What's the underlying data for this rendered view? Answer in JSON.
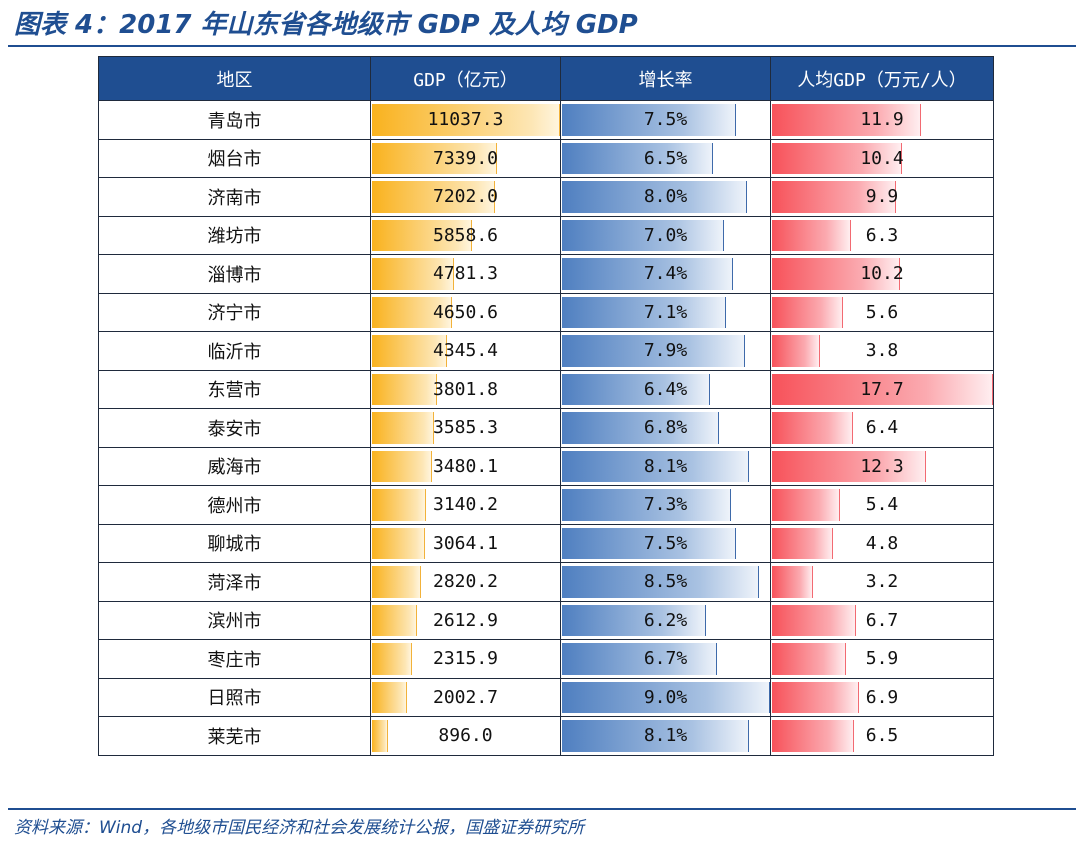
{
  "title": "图表 4：2017 年山东省各地级市 GDP 及人均 GDP",
  "source": "资料来源：Wind，各地级市国民经济和社会发展统计公报，国盛证券研究所",
  "colors": {
    "gdp_bar": "#f9b21e",
    "growth_bar": "#4f7fc0",
    "per_capita_bar": "#f7525a",
    "header_bg": "#1f4e91"
  },
  "chart_data": {
    "type": "table",
    "columns": [
      "地区",
      "GDP（亿元）",
      "增长率",
      "人均GDP（万元/人）"
    ],
    "rows": [
      {
        "city": "青岛市",
        "gdp": "11037.3",
        "growth": "7.5%",
        "per_capita": "11.9"
      },
      {
        "city": "烟台市",
        "gdp": "7339.0",
        "growth": "6.5%",
        "per_capita": "10.4"
      },
      {
        "city": "济南市",
        "gdp": "7202.0",
        "growth": "8.0%",
        "per_capita": "9.9"
      },
      {
        "city": "潍坊市",
        "gdp": "5858.6",
        "growth": "7.0%",
        "per_capita": "6.3"
      },
      {
        "city": "淄博市",
        "gdp": "4781.3",
        "growth": "7.4%",
        "per_capita": "10.2"
      },
      {
        "city": "济宁市",
        "gdp": "4650.6",
        "growth": "7.1%",
        "per_capita": "5.6"
      },
      {
        "city": "临沂市",
        "gdp": "4345.4",
        "growth": "7.9%",
        "per_capita": "3.8"
      },
      {
        "city": "东营市",
        "gdp": "3801.8",
        "growth": "6.4%",
        "per_capita": "17.7"
      },
      {
        "city": "泰安市",
        "gdp": "3585.3",
        "growth": "6.8%",
        "per_capita": "6.4"
      },
      {
        "city": "威海市",
        "gdp": "3480.1",
        "growth": "8.1%",
        "per_capita": "12.3"
      },
      {
        "city": "德州市",
        "gdp": "3140.2",
        "growth": "7.3%",
        "per_capita": "5.4"
      },
      {
        "city": "聊城市",
        "gdp": "3064.1",
        "growth": "7.5%",
        "per_capita": "4.8"
      },
      {
        "city": "菏泽市",
        "gdp": "2820.2",
        "growth": "8.5%",
        "per_capita": "3.2"
      },
      {
        "city": "滨州市",
        "gdp": "2612.9",
        "growth": "6.2%",
        "per_capita": "6.7"
      },
      {
        "city": "枣庄市",
        "gdp": "2315.9",
        "growth": "6.7%",
        "per_capita": "5.9"
      },
      {
        "city": "日照市",
        "gdp": "2002.7",
        "growth": "9.0%",
        "per_capita": "6.9"
      },
      {
        "city": "莱芜市",
        "gdp": "896.0",
        "growth": "8.1%",
        "per_capita": "6.5"
      }
    ]
  }
}
